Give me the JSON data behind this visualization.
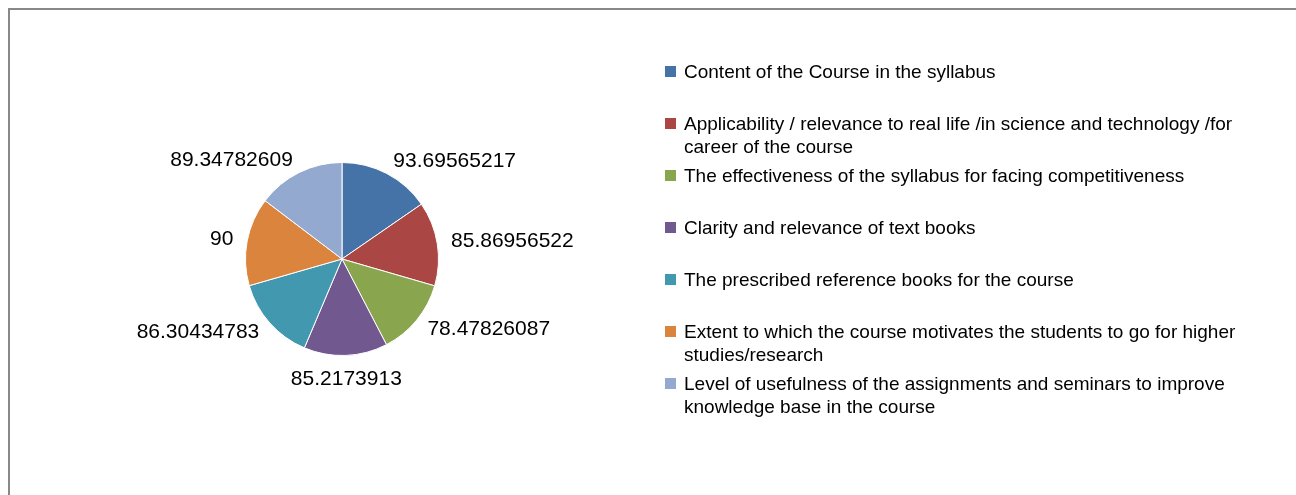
{
  "chart_data": {
    "type": "pie",
    "categories": [
      "Content of the Course in the syllabus",
      "Applicability / relevance to real life /in science and technology /for career of the course",
      "The effectiveness of the syllabus for facing competitiveness",
      "Clarity and relevance of text books",
      "The prescribed reference books for the course",
      "Extent to which the course motivates the students to go for higher studies/research",
      "Level of usefulness of the assignments and seminars to improve knowledge base in the course"
    ],
    "values": [
      93.69565217,
      85.86956522,
      78.47826087,
      85.2173913,
      86.30434783,
      90,
      89.34782609
    ],
    "colors": [
      "#4572a7",
      "#aa4643",
      "#89a54e",
      "#71588f",
      "#4198af",
      "#db843d",
      "#93a9cf"
    ],
    "data_labels": true,
    "legend": "right"
  }
}
